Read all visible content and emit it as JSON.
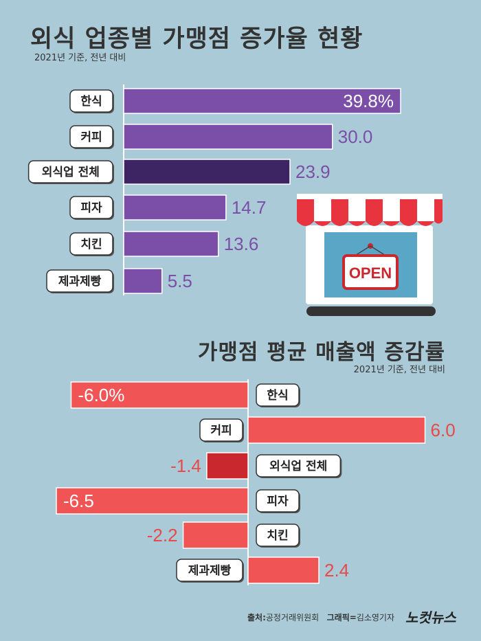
{
  "header": {
    "title": "외식 업종별 가맹점 증가율 현황",
    "subtitle": "2021년 기준, 전년 대비"
  },
  "section2": {
    "title": "가맹점 평균 매출액 증감률",
    "subtitle": "2021년 기준, 전년 대비"
  },
  "store_sign": "OPEN",
  "footer": {
    "source_label": "출처:",
    "source": "공정거래위원회",
    "graphic_label": "그래픽=",
    "graphic": "김소영기자",
    "logo": "노컷뉴스"
  },
  "colors": {
    "background": "#a9cad6",
    "bar_purple": "#7b4fa8",
    "bar_purple_total": "#3d2462",
    "bar_red": "#f05454",
    "bar_red_total": "#c8282e",
    "label_purple": "#7b4fa8",
    "label_red": "#e84a4a"
  },
  "chart_data": [
    {
      "type": "bar",
      "orientation": "horizontal",
      "title": "외식 업종별 가맹점 증가율 현황",
      "subtitle": "2021년 기준, 전년 대비",
      "categories": [
        "한식",
        "커피",
        "외식업 전체",
        "피자",
        "치킨",
        "제과제빵"
      ],
      "values": [
        39.8,
        30.0,
        23.9,
        14.7,
        13.6,
        5.5
      ],
      "value_labels": [
        "39.8%",
        "30.0",
        "23.9",
        "14.7",
        "13.6",
        "5.5"
      ],
      "highlight": "외식업 전체",
      "xlim": [
        0,
        40
      ]
    },
    {
      "type": "bar",
      "orientation": "horizontal-diverging",
      "title": "가맹점 평균 매출액 증감률",
      "subtitle": "2021년 기준, 전년 대비",
      "categories": [
        "한식",
        "커피",
        "외식업 전체",
        "피자",
        "치킨",
        "제과제빵"
      ],
      "values": [
        -6.0,
        6.0,
        -1.4,
        -6.5,
        -2.2,
        2.4
      ],
      "value_labels": [
        "-6.0%",
        "6.0",
        "-1.4",
        "-6.5",
        "-2.2",
        "2.4"
      ],
      "highlight": "외식업 전체",
      "xlim": [
        -6.5,
        6.5
      ]
    }
  ]
}
